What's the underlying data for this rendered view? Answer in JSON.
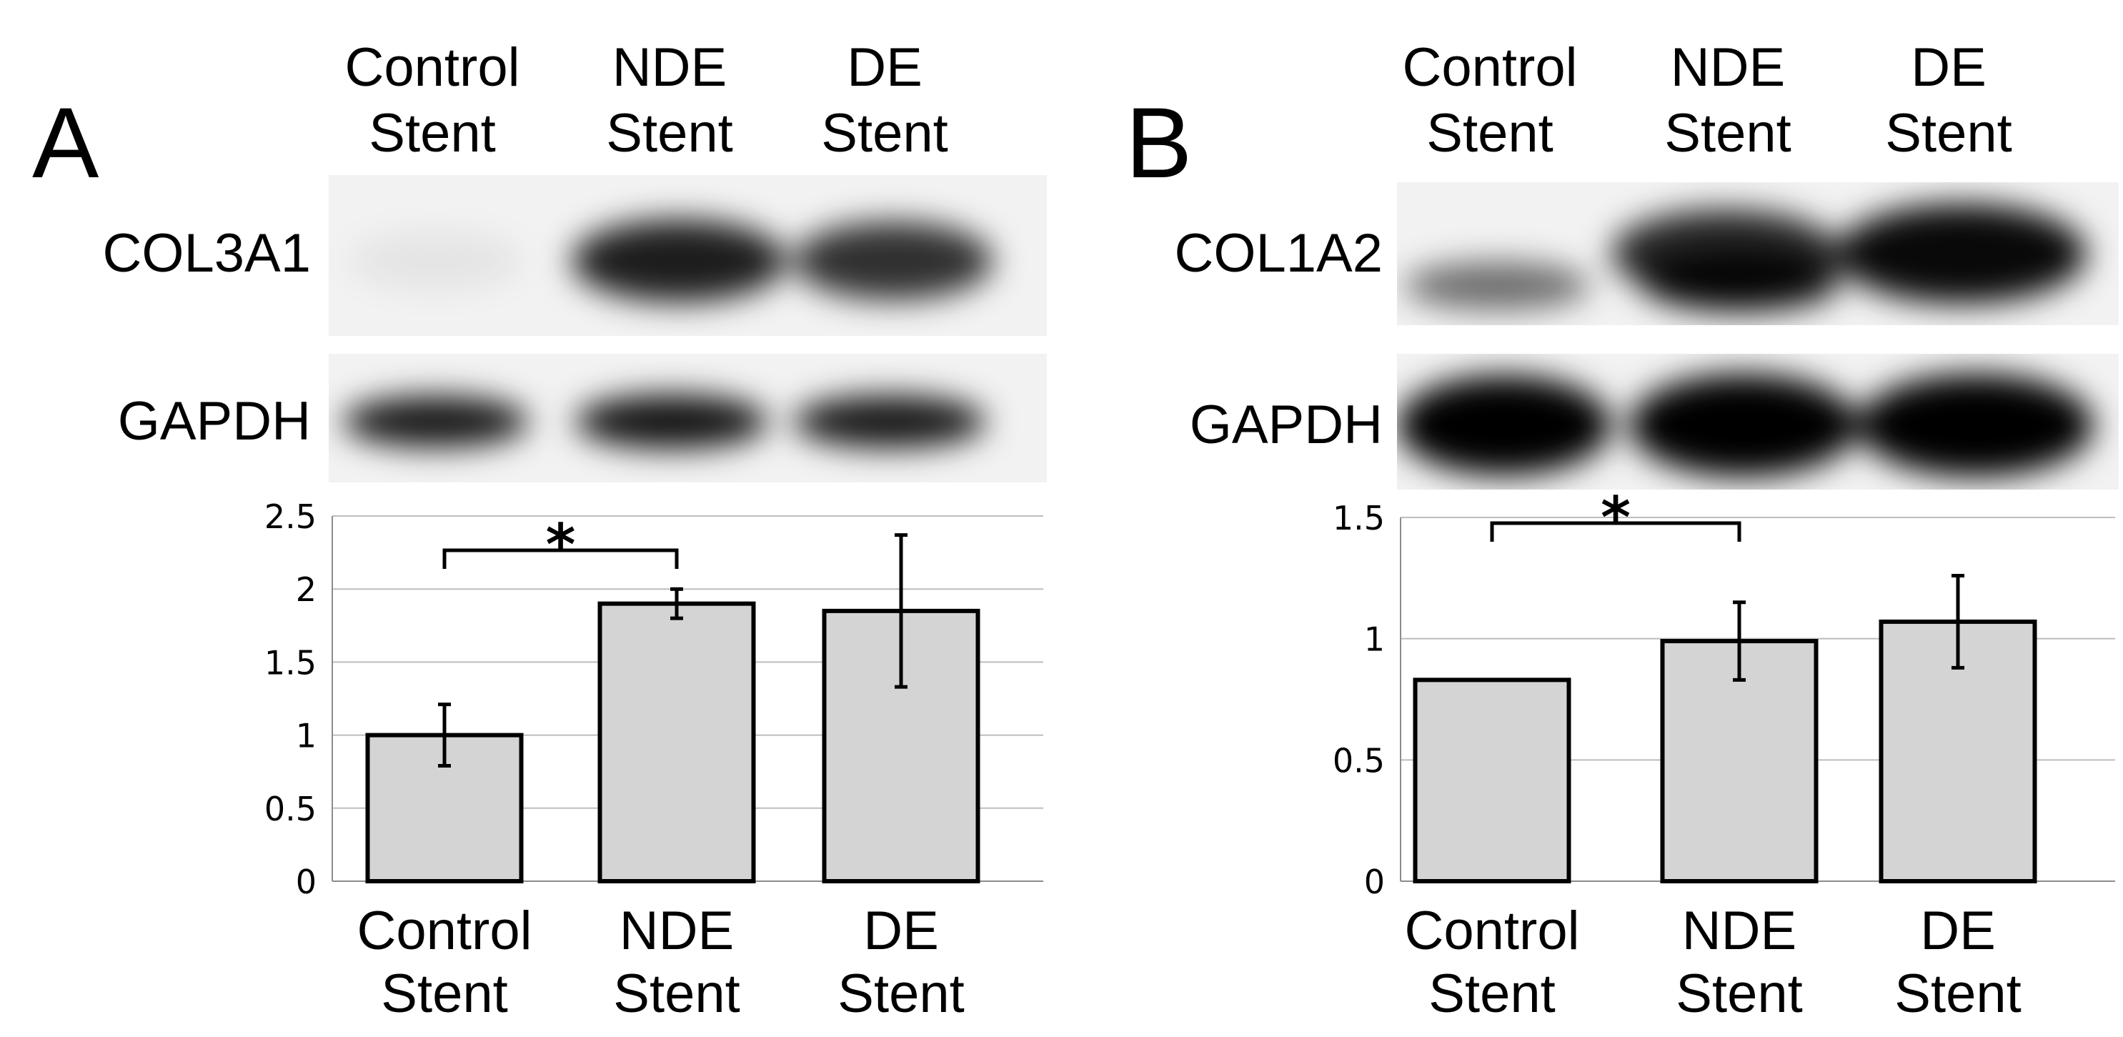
{
  "panels": [
    {
      "letter": "A",
      "lane_labels": [
        [
          "Control",
          "Stent"
        ],
        [
          "NDE",
          "Stent"
        ],
        [
          "DE",
          "Stent"
        ]
      ],
      "blot_rows": [
        {
          "label": "COL3A1",
          "intensity": [
            0.06,
            0.88,
            0.8
          ]
        },
        {
          "label": "GAPDH",
          "intensity": [
            0.9,
            0.92,
            0.9
          ]
        }
      ]
    },
    {
      "letter": "B",
      "lane_labels": [
        [
          "Control",
          "Stent"
        ],
        [
          "NDE",
          "Stent"
        ],
        [
          "DE",
          "Stent"
        ]
      ],
      "blot_rows": [
        {
          "label": "COL1A2",
          "intensity": [
            0.55,
            0.92,
            0.96
          ]
        },
        {
          "label": "GAPDH",
          "intensity": [
            1.0,
            1.0,
            1.0
          ]
        }
      ]
    }
  ],
  "chart_data": [
    {
      "type": "bar",
      "categories": [
        [
          "Control",
          "Stent"
        ],
        [
          "NDE",
          "Stent"
        ],
        [
          "DE",
          "Stent"
        ]
      ],
      "values": [
        1.0,
        1.9,
        1.85
      ],
      "error": [
        0.21,
        0.1,
        0.52
      ],
      "ylim": [
        0,
        2.5
      ],
      "yticks": [
        "0",
        "0.5",
        "1",
        "1.5",
        "2",
        "2.5"
      ],
      "ytick_values": [
        0,
        0.5,
        1,
        1.5,
        2,
        2.5
      ],
      "grid": true,
      "significance": [
        {
          "from": 0,
          "to": 1,
          "label": "*"
        }
      ],
      "bar_color": "#d4d4d4"
    },
    {
      "type": "bar",
      "categories": [
        [
          "Control",
          "Stent"
        ],
        [
          "NDE",
          "Stent"
        ],
        [
          "DE",
          "Stent"
        ]
      ],
      "values": [
        0.83,
        0.99,
        1.07
      ],
      "error": [
        0.0,
        0.16,
        0.19
      ],
      "ylim": [
        0,
        1.5
      ],
      "yticks": [
        "0",
        "0.5",
        "1",
        "1.5"
      ],
      "ytick_values": [
        0,
        0.5,
        1,
        1.5
      ],
      "grid": true,
      "significance": [
        {
          "from": 0,
          "to": 1,
          "label": "*"
        }
      ],
      "bar_color": "#d4d4d4"
    }
  ]
}
